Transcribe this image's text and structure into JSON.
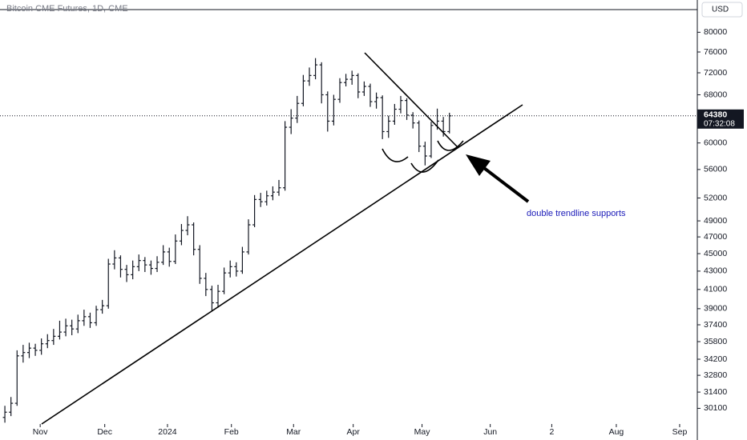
{
  "chart_data": {
    "type": "ohlc",
    "title": "Bitcoin CME Futures, 1D, CME",
    "currency": "USD",
    "annotation": "double trendline supports",
    "annotation_color": "#1a1ab8",
    "bar_color": "#131722",
    "last_price": 64380,
    "countdown": "07:32:08",
    "log_scale": true,
    "ylim": [
      28900,
      87000
    ],
    "yticks": [
      30100,
      31400,
      32800,
      34200,
      35800,
      37400,
      39000,
      41000,
      43000,
      45000,
      47000,
      49000,
      52000,
      56000,
      60000,
      68000,
      72000,
      76000,
      80000
    ],
    "xlim": [
      -0.8,
      113.7
    ],
    "xticks": [
      {
        "value": 5.8,
        "label": "Nov"
      },
      {
        "value": 16.4,
        "label": "Dec"
      },
      {
        "value": 26.7,
        "label": "2024"
      },
      {
        "value": 37.2,
        "label": "Feb"
      },
      {
        "value": 47.4,
        "label": "Mar"
      },
      {
        "value": 57.2,
        "label": "Apr"
      },
      {
        "value": 68.5,
        "label": "May"
      },
      {
        "value": 79.7,
        "label": "Jun"
      },
      {
        "value": 89.8,
        "label": "2"
      },
      {
        "value": 100.4,
        "label": "Aug"
      },
      {
        "value": 110.8,
        "label": "Sep"
      }
    ],
    "open": [
      29400,
      29800,
      30500,
      34500,
      34800,
      35200,
      35000,
      35600,
      35900,
      36300,
      36700,
      37300,
      37000,
      37800,
      38200,
      37600,
      38900,
      39300,
      43800,
      44500,
      43200,
      42600,
      43500,
      44200,
      43700,
      43300,
      44000,
      45200,
      44100,
      46500,
      47800,
      48500,
      45500,
      42200,
      41000,
      39600,
      40800,
      42800,
      43500,
      43000,
      45200,
      48500,
      51800,
      51500,
      52300,
      52800,
      53400,
      62500,
      64000,
      66500,
      70500,
      71500,
      73500,
      68000,
      63500,
      67200,
      70200,
      70800,
      71500,
      68500,
      69500,
      66800,
      67500,
      61800,
      63500,
      65500,
      67000,
      64500,
      63200,
      59500,
      58000,
      62800,
      63500,
      61800
    ],
    "high": [
      30300,
      31000,
      35000,
      35500,
      35700,
      35600,
      36100,
      36500,
      37000,
      37800,
      38000,
      37900,
      38400,
      38900,
      38600,
      39300,
      39900,
      44400,
      45400,
      44800,
      43700,
      44200,
      44900,
      44600,
      44200,
      44700,
      46000,
      45700,
      47300,
      48600,
      49600,
      48800,
      46000,
      42800,
      41400,
      41500,
      43400,
      44200,
      44000,
      45800,
      49200,
      52400,
      52700,
      53000,
      53600,
      54500,
      63500,
      65500,
      67800,
      71600,
      73000,
      74800,
      74000,
      68600,
      68000,
      71000,
      71800,
      72400,
      71900,
      70400,
      70000,
      68400,
      67900,
      64400,
      66400,
      67800,
      67400,
      65000,
      63600,
      60200,
      63400,
      65600,
      64200,
      64900
    ],
    "low": [
      29000,
      29500,
      30300,
      33900,
      34300,
      34500,
      34600,
      35200,
      35500,
      36000,
      36300,
      36400,
      36600,
      37300,
      37100,
      37300,
      38500,
      39000,
      43200,
      42300,
      41800,
      42100,
      43000,
      42900,
      42600,
      42900,
      43700,
      43500,
      43800,
      46000,
      47200,
      44800,
      41600,
      40300,
      38700,
      39100,
      40500,
      42300,
      42400,
      42700,
      44900,
      48200,
      50800,
      51000,
      51700,
      52300,
      53000,
      61400,
      63200,
      66000,
      69600,
      70800,
      66500,
      61800,
      62800,
      66600,
      69500,
      69800,
      67400,
      67800,
      65900,
      65600,
      60600,
      60800,
      62900,
      64800,
      63700,
      62300,
      58600,
      56600,
      57700,
      62100,
      61000,
      61500
    ],
    "close": [
      29800,
      30500,
      34500,
      34800,
      35200,
      35000,
      35600,
      35900,
      36300,
      36700,
      37300,
      37000,
      37800,
      38200,
      37600,
      38900,
      39300,
      43800,
      44500,
      43200,
      42600,
      43500,
      44200,
      43700,
      43300,
      44000,
      45200,
      44100,
      46500,
      47800,
      48500,
      45500,
      42200,
      41000,
      39600,
      40800,
      42800,
      43500,
      43000,
      45200,
      48500,
      51800,
      51500,
      52300,
      52800,
      53400,
      62500,
      64000,
      66500,
      70500,
      71500,
      73500,
      68000,
      63500,
      67200,
      70200,
      70800,
      71500,
      68500,
      69500,
      66800,
      67500,
      61800,
      63500,
      65500,
      67000,
      64500,
      63200,
      59500,
      58000,
      62800,
      63500,
      61800,
      64380
    ]
  }
}
